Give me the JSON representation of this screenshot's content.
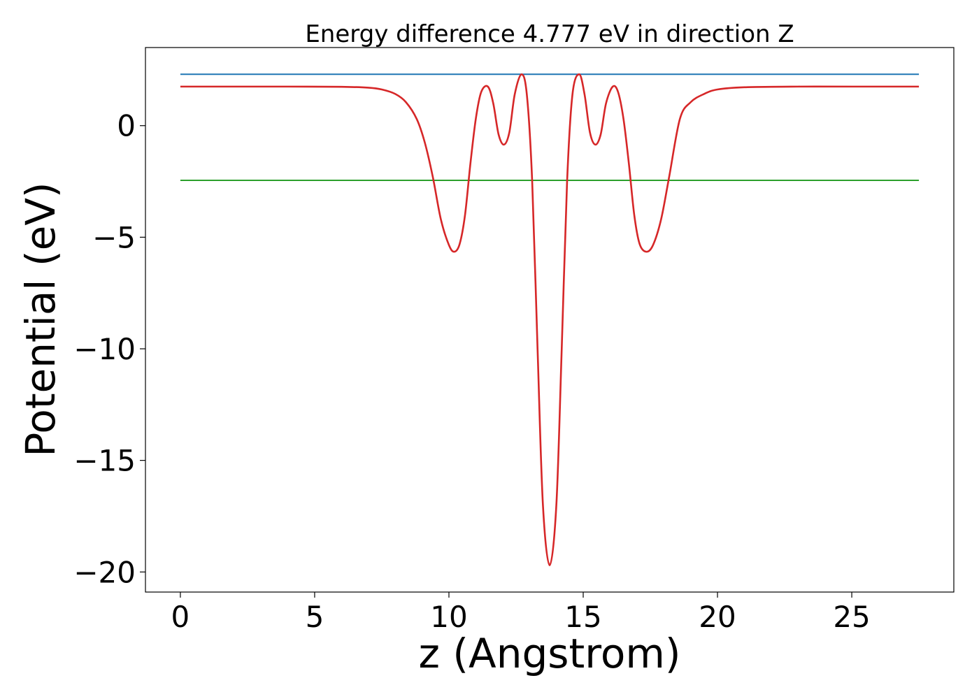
{
  "chart_data": {
    "type": "line",
    "title": "Energy difference 4.777 eV in direction Z",
    "xlabel": "z (Angstrom)",
    "ylabel": "Potential (eV)",
    "xlim": [
      -1.3,
      28.8
    ],
    "ylim": [
      -20.9,
      3.5
    ],
    "xticks": [
      0,
      5,
      10,
      15,
      20,
      25
    ],
    "yticks": [
      0,
      -5,
      -10,
      -15,
      -20
    ],
    "xtick_labels": [
      "0",
      "5",
      "10",
      "15",
      "20",
      "25"
    ],
    "ytick_labels": [
      "0",
      "−5",
      "−10",
      "−15",
      "−20"
    ],
    "grid": false,
    "series": [
      {
        "color": "#1f77b4",
        "x": [
          0,
          27.5
        ],
        "y": [
          2.3,
          2.3
        ]
      },
      {
        "color": "#2ca02c",
        "x": [
          0,
          27.5
        ],
        "y": [
          -2.45,
          -2.45
        ]
      },
      {
        "color": "#d62728",
        "x": [
          0,
          2,
          4,
          6,
          7,
          7.5,
          8,
          8.4,
          8.8,
          9.1,
          9.4,
          9.7,
          10.0,
          10.2,
          10.4,
          10.6,
          10.8,
          11.0,
          11.2,
          11.45,
          11.65,
          11.85,
          12.05,
          12.25,
          12.45,
          12.7,
          12.9,
          13.1,
          13.3,
          13.5,
          13.75,
          14.0,
          14.2,
          14.4,
          14.6,
          14.85,
          15.05,
          15.25,
          15.45,
          15.65,
          15.85,
          16.1,
          16.3,
          16.5,
          16.7,
          16.9,
          17.1,
          17.35,
          17.6,
          17.9,
          18.2,
          18.6,
          19.0,
          19.5,
          20.0,
          21.0,
          23.0,
          25.0,
          27.5
        ],
        "y": [
          1.75,
          1.75,
          1.75,
          1.74,
          1.7,
          1.62,
          1.42,
          1.05,
          0.3,
          -0.75,
          -2.3,
          -4.2,
          -5.35,
          -5.65,
          -5.3,
          -4.0,
          -1.7,
          0.3,
          1.5,
          1.75,
          1.0,
          -0.4,
          -0.85,
          -0.3,
          1.4,
          2.3,
          1.4,
          -2.5,
          -10.0,
          -17.0,
          -19.7,
          -17.0,
          -10.0,
          -2.5,
          1.4,
          2.3,
          1.4,
          -0.3,
          -0.85,
          -0.4,
          1.0,
          1.75,
          1.5,
          0.3,
          -1.7,
          -4.0,
          -5.3,
          -5.65,
          -5.35,
          -4.2,
          -2.3,
          0.3,
          1.05,
          1.42,
          1.62,
          1.72,
          1.75,
          1.75,
          1.75
        ]
      }
    ]
  }
}
